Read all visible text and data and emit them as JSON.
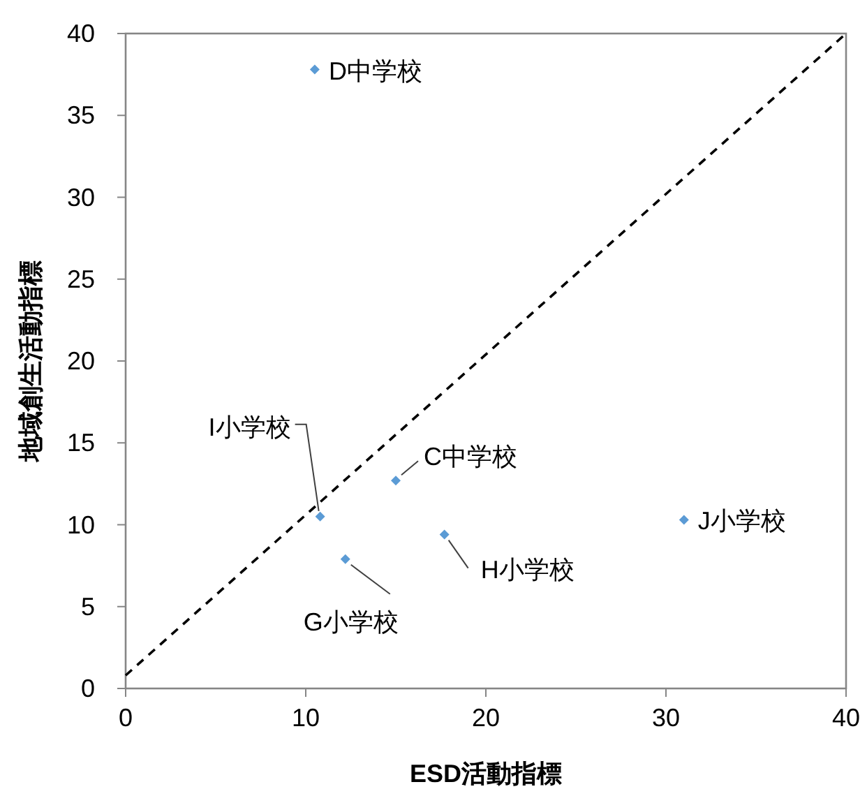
{
  "chart_data": {
    "type": "scatter",
    "xlabel": "ESD活動指標",
    "ylabel": "地域創生活動指標",
    "xlim": [
      0,
      40
    ],
    "ylim": [
      0,
      40
    ],
    "xticks": [
      0,
      10,
      20,
      30,
      40
    ],
    "yticks": [
      0,
      5,
      10,
      15,
      20,
      25,
      30,
      35,
      40
    ],
    "grid": false,
    "series": [
      {
        "color": "#5b9bd5",
        "marker": "diamond",
        "x": [
          10.5,
          10.8,
          15.0,
          12.2,
          17.7,
          31.0
        ],
        "values": [
          37.8,
          10.5,
          12.7,
          7.9,
          9.4,
          10.3
        ]
      },
      {
        "type": "line",
        "color": "#000000",
        "line_style": "dashed",
        "marker": "none",
        "x": [
          0,
          40
        ],
        "values": [
          0.8,
          40
        ]
      }
    ],
    "annotations": [
      {
        "text": "D中学校",
        "x": 10.5,
        "y": 37.8
      },
      {
        "text": "I小学校",
        "x": 10.8,
        "y": 10.5
      },
      {
        "text": "C中学校",
        "x": 15.0,
        "y": 12.7
      },
      {
        "text": "G小学校",
        "x": 12.2,
        "y": 7.9
      },
      {
        "text": "H小学校",
        "x": 17.7,
        "y": 9.4
      },
      {
        "text": "J小学校",
        "x": 31.0,
        "y": 10.3
      }
    ]
  }
}
